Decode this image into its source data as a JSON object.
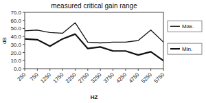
{
  "chart_data": {
    "type": "line",
    "title": "measured critical gain range",
    "xlabel": "HZ",
    "ylabel": "dB",
    "x": [
      250,
      750,
      1250,
      1750,
      2250,
      2750,
      3250,
      3750,
      4250,
      4750,
      5250,
      5750
    ],
    "series": [
      {
        "name": "Max.",
        "color": "#111111",
        "values": [
          47,
          48,
          45,
          44,
          57,
          33,
          32,
          33,
          33,
          35,
          48,
          33
        ]
      },
      {
        "name": "Min.",
        "color": "#111111",
        "values": [
          37,
          36,
          28,
          37,
          43,
          25,
          27,
          22,
          22,
          17,
          21,
          10
        ]
      }
    ],
    "xlim": [
      250,
      5750
    ],
    "xticks": [
      250,
      750,
      1250,
      1750,
      2250,
      2750,
      3250,
      3750,
      4250,
      4750,
      5250,
      5750
    ],
    "ylim": [
      0,
      70
    ],
    "yticks": [
      {
        "value": 0,
        "label": "0.0"
      },
      {
        "value": 10,
        "label": "10.0"
      },
      {
        "value": 20,
        "label": "20.0"
      },
      {
        "value": 30,
        "label": "30.0"
      },
      {
        "value": 40,
        "label": "40.0"
      },
      {
        "value": 50,
        "label": "50.0"
      },
      {
        "value": 60,
        "label": "60.0"
      },
      {
        "value": 70,
        "label": "70.0"
      }
    ],
    "grid": false,
    "legend": "right"
  }
}
